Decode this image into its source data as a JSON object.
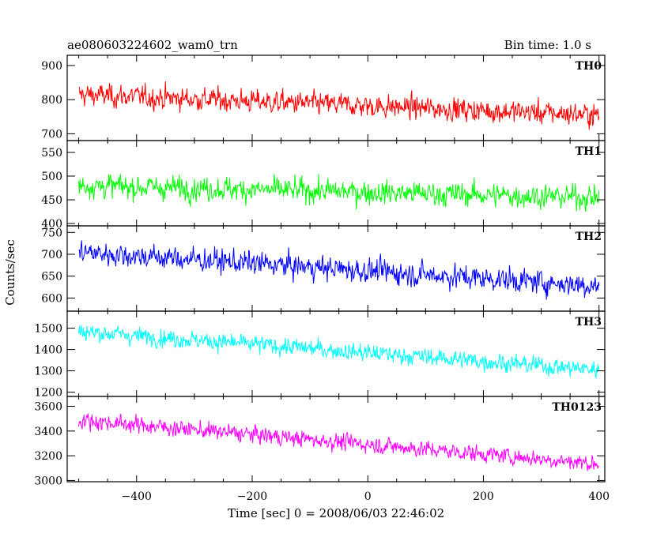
{
  "header": {
    "title": "ae080603224602_wam0_trn",
    "bin_time": "Bin time: 1.0 s"
  },
  "axes": {
    "xlabel": "Time [sec] 0 = 2008/06/03 22:46:02",
    "ylabel": "Counts/sec",
    "xlim": [
      -520,
      410
    ],
    "xticks": [
      "−400",
      "−200",
      "0",
      "200",
      "400"
    ]
  },
  "chart_data": [
    {
      "type": "line",
      "panel": "TH0",
      "color": "#ff0000",
      "x_range": [
        -500,
        400
      ],
      "ylim": [
        680,
        930
      ],
      "yticks": [
        "900",
        "800",
        "700"
      ],
      "trend": {
        "start": 815,
        "end": 755
      },
      "noise_sd": 32
    },
    {
      "type": "line",
      "panel": "TH1",
      "color": "#00ff00",
      "x_range": [
        -500,
        400
      ],
      "ylim": [
        395,
        575
      ],
      "yticks": [
        "550",
        "500",
        "450",
        "400"
      ],
      "trend": {
        "start": 480,
        "end": 455
      },
      "noise_sd": 24
    },
    {
      "type": "line",
      "panel": "TH2",
      "color": "#0000ff",
      "x_range": [
        -500,
        400
      ],
      "ylim": [
        570,
        765
      ],
      "yticks": [
        "750",
        "700",
        "650",
        "600"
      ],
      "trend": {
        "start": 705,
        "end": 628
      },
      "noise_sd": 26
    },
    {
      "type": "line",
      "panel": "TH3",
      "color": "#00ffff",
      "x_range": [
        -500,
        400
      ],
      "ylim": [
        1180,
        1580
      ],
      "yticks": [
        "1500",
        "1400",
        "1300",
        "1200"
      ],
      "trend": {
        "start": 1485,
        "end": 1305
      },
      "noise_sd": 40
    },
    {
      "type": "line",
      "panel": "TH0123",
      "color": "#ff00ff",
      "x_range": [
        -500,
        400
      ],
      "ylim": [
        2990,
        3680
      ],
      "yticks": [
        "3600",
        "3400",
        "3200",
        "3000"
      ],
      "trend": {
        "start": 3490,
        "end": 3135
      },
      "noise_sd": 65
    }
  ]
}
